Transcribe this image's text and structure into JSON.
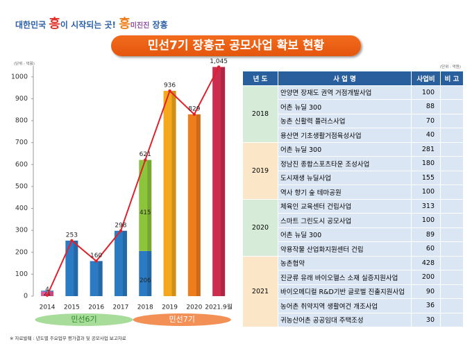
{
  "header": {
    "logo": [
      "대한민국",
      "흥",
      "이 시작되는 곳!",
      "흥",
      "미진진",
      "장흥"
    ],
    "title": "민선7기 장흥군 공모사업 확보 현황"
  },
  "chart_data": {
    "type": "bar",
    "unit": "(단위 : 억원)",
    "categories": [
      "2014",
      "2015",
      "2016",
      "2017",
      "2018",
      "2019",
      "2020",
      "2021.9월"
    ],
    "series": [
      {
        "colors": [
          "#e8579a",
          null,
          null,
          null,
          "#2b7bc4",
          null,
          null,
          null
        ],
        "values": [
          21,
          null,
          null,
          null,
          206,
          null,
          null,
          null
        ],
        "show_labels": true
      },
      {
        "colors": [
          "#3c8fd6",
          "#2b7bc4",
          "#2b7bc4",
          "#2b7bc4",
          null,
          "#f5a81c",
          "#f07d1c",
          "#cc2d4f"
        ],
        "values": [
          4,
          253,
          160,
          298,
          null,
          936,
          829,
          1045
        ],
        "show_labels": false
      },
      {
        "colors": [
          null,
          null,
          null,
          null,
          "#8cc43c",
          null,
          null,
          null
        ],
        "values": [
          null,
          null,
          null,
          null,
          415,
          null,
          null,
          null
        ],
        "show_labels": true
      }
    ],
    "line": {
      "type": "line",
      "color": "#e0202a",
      "values": [
        4,
        253,
        160,
        298,
        621,
        936,
        829,
        1045
      ],
      "value_labels": [
        "4",
        "253",
        "160",
        "298",
        "621",
        "936",
        "829",
        "1,045"
      ]
    },
    "ylim": [
      0,
      1050
    ],
    "yticks": [
      0,
      100,
      200,
      300,
      400,
      500,
      600,
      700,
      800,
      900,
      1000
    ],
    "eras": [
      {
        "label": "민선6기",
        "color": "#a8dc9a",
        "text_color": "#2e8a2e",
        "categories": [
          "2014",
          "2015",
          "2016",
          "2017"
        ]
      },
      {
        "label": "민선7기",
        "color": "#f29055",
        "text_color": "#fff",
        "categories": [
          "2018",
          "2019",
          "2020",
          "2021.9월"
        ]
      }
    ]
  },
  "table": {
    "unit": "(단위 : 억원)",
    "headers": [
      "년 도",
      "사 업 명",
      "사업비",
      "비 고"
    ],
    "groups": [
      {
        "year": "2018",
        "items": [
          [
            "안양면 장재도 권역 거점개발사업",
            100
          ],
          [
            "어촌 뉴딜 300",
            88
          ],
          [
            "농촌 신활력 플러스사업",
            70
          ],
          [
            "용산면 기초생활거점육성사업",
            40
          ]
        ]
      },
      {
        "year": "2019",
        "items": [
          [
            "어촌 뉴딜 300",
            281
          ],
          [
            "정남진 종합스포츠타운 조성사업",
            180
          ],
          [
            "도시재생 뉴딜사업",
            155
          ],
          [
            "역사 향기 숲 테마공원",
            100
          ]
        ]
      },
      {
        "year": "2020",
        "items": [
          [
            "체육인 교육센터  건립사업",
            313
          ],
          [
            "스마트 그린도시 공모사업",
            100
          ],
          [
            "어촌 뉴딜 300",
            89
          ],
          [
            "약용작물 산업화지원센터 건립",
            60
          ]
        ]
      },
      {
        "year": "2021",
        "items": [
          [
            "농촌협약",
            428
          ],
          [
            "진균류 유래 바이오헬스 소재 실증지원사업",
            200
          ],
          [
            "바이오메디컬 R&D기반 글로벌  진출지원사업",
            90
          ],
          [
            "농어촌 취약지역 생활여건 개조사업",
            36
          ],
          [
            "귀농산어촌 공공임대 주택조성",
            30
          ]
        ]
      }
    ],
    "note": "※ 자료발췌 : 년도별 주요업무 평가결과 및 공모사업 보고자료"
  }
}
